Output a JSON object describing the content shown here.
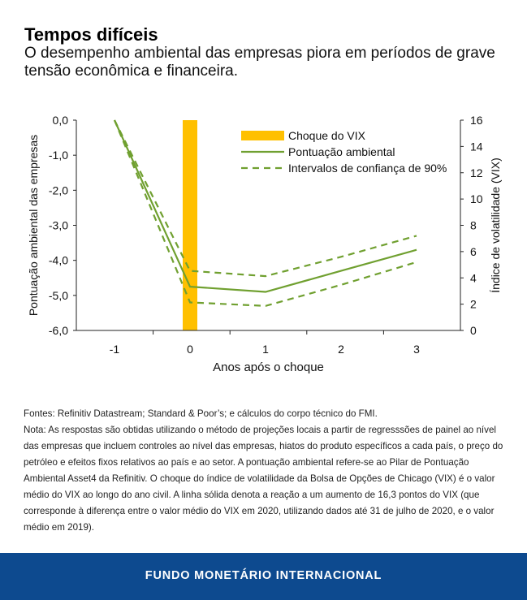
{
  "header": {
    "title": "Tempos difíceis",
    "subtitle": "O desempenho ambiental das empresas piora em períodos de grave tensão econômica e financeira."
  },
  "chart_data": {
    "type": "line",
    "xlabel": "Anos após o choque",
    "ylabel_left": "Pontuação ambiental das empresas",
    "ylabel_right": "Índice de volatilidade (VIX)",
    "x": [
      -1,
      0,
      1,
      2,
      3
    ],
    "x_tick_labels": [
      "-1",
      "0",
      "1",
      "2",
      "3"
    ],
    "ylim_left": [
      -6,
      0
    ],
    "y_left_ticks": [
      "0,0",
      "-1,0",
      "-2,0",
      "-3,0",
      "-4,0",
      "-5,0",
      "-6,0"
    ],
    "ylim_right": [
      0,
      16
    ],
    "y_right_ticks": [
      "16",
      "14",
      "12",
      "10",
      "8",
      "6",
      "4",
      "2",
      "0"
    ],
    "legend_position": "top-right",
    "grid": false,
    "colors": {
      "vix": "#ffc000",
      "line": "#70a030"
    },
    "series": [
      {
        "name": "Choque do VIX",
        "kind": "bar",
        "axis": "right",
        "x": [
          0
        ],
        "values": [
          16
        ]
      },
      {
        "name": "Pontuação ambiental",
        "kind": "solid",
        "axis": "left",
        "values": [
          0.0,
          -4.75,
          -4.9,
          -4.3,
          -3.7
        ]
      },
      {
        "name": "Intervalos de confiança de 90%",
        "kind": "dashed",
        "axis": "left",
        "values": [
          0.0,
          -4.3,
          -4.45,
          -3.9,
          -3.3
        ]
      },
      {
        "name": "",
        "kind": "dashed",
        "axis": "left",
        "values": [
          0.0,
          -5.2,
          -5.3,
          -4.7,
          -4.05
        ]
      }
    ]
  },
  "notes": {
    "sources": "Fontes: Refinitiv Datastream; Standard & Poor’s; e cálculos do corpo técnico do FMI.",
    "note": "Nota: As respostas são obtidas utilizando o método de projeções locais a partir de regresssões de painel ao nível das empresas que incluem controles ao nível das empresas, hiatos do produto específicos a cada país, o preço do petróleo e efeitos fixos relativos ao país e ao setor. A pontuação ambiental refere-se ao Pilar de Pontuação Ambiental Asset4 da Refinitiv. O choque do índice de volatilidade da Bolsa de Opções de Chicago (VIX) é o valor médio do VIX ao longo do ano civil. A linha sólida denota a reação a um aumento de 16,3 pontos do VIX (que corresponde à diferença entre o valor médio do VIX em 2020, utilizando dados até 31 de julho de 2020, e o valor médio em 2019)."
  },
  "footer": {
    "label": "FUNDO MONETÁRIO INTERNACIONAL"
  }
}
